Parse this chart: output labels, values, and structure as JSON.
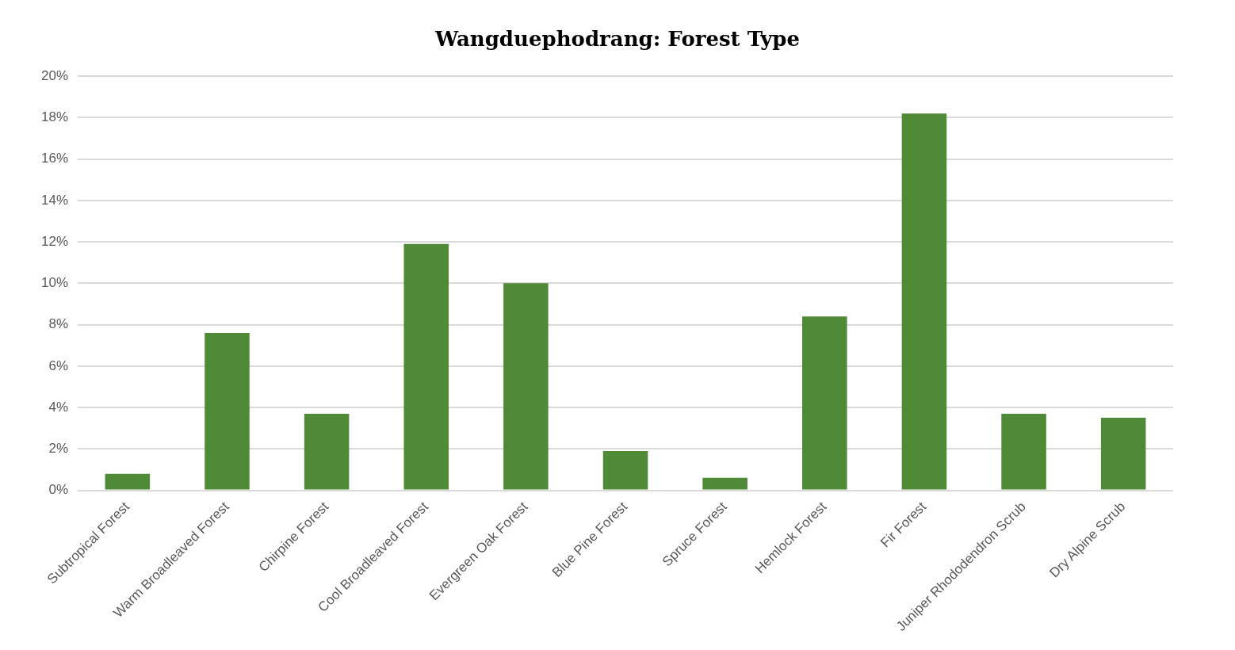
{
  "chart_data": {
    "type": "bar",
    "title": "Wangduephodrang: Forest Type",
    "categories": [
      "Subtropical Forest",
      "Warm Broadleaved Forest",
      "Chirpine Forest",
      "Cool Broadleaved Forest",
      "Evergreen Oak Forest",
      "Blue Pine Forest",
      "Spruce Forest",
      "Hemlock Forest",
      "Fir Forest",
      "Juniper Rhododendron Scrub",
      "Dry Alpine Scrub"
    ],
    "values": [
      0.8,
      7.6,
      3.7,
      11.9,
      10.0,
      1.9,
      0.6,
      8.4,
      18.2,
      3.7,
      3.5
    ],
    "color": "#4f8a37",
    "ylim": [
      0,
      20
    ],
    "yticks": [
      {
        "value": 0,
        "label": "0%"
      },
      {
        "value": 2,
        "label": "2%"
      },
      {
        "value": 4,
        "label": "4%"
      },
      {
        "value": 6,
        "label": "6%"
      },
      {
        "value": 8,
        "label": "8%"
      },
      {
        "value": 10,
        "label": "10%"
      },
      {
        "value": 12,
        "label": "12%"
      },
      {
        "value": 14,
        "label": "14%"
      },
      {
        "value": 16,
        "label": "16%"
      },
      {
        "value": 18,
        "label": "18%"
      },
      {
        "value": 20,
        "label": "20%"
      }
    ],
    "grid": "y"
  }
}
